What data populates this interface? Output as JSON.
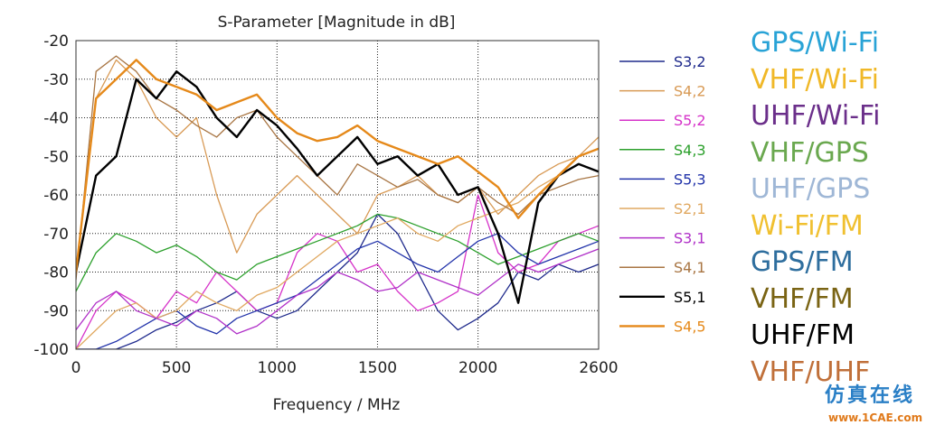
{
  "chart_data": {
    "type": "line",
    "title": "S-Parameter [Magnitude in dB]",
    "xlabel": "Frequency / MHz",
    "ylabel": "",
    "xlim": [
      0,
      2600
    ],
    "ylim": [
      -100,
      -20
    ],
    "x_ticks": [
      "0",
      "500",
      "1000",
      "1500",
      "2000",
      "2600"
    ],
    "y_ticks": [
      "-20",
      "-30",
      "-40",
      "-50",
      "-60",
      "-70",
      "-80",
      "-90",
      "-100"
    ],
    "grid": true,
    "legend_position": "right",
    "series": [
      {
        "name": "S3,2",
        "color": "#1f2a8c",
        "x": [
          0,
          100,
          200,
          300,
          400,
          500,
          600,
          700,
          800,
          900,
          1000,
          1100,
          1200,
          1300,
          1400,
          1500,
          1600,
          1700,
          1800,
          1900,
          2000,
          2100,
          2200,
          2300,
          2400,
          2500,
          2600
        ],
        "values": [
          -100,
          -100,
          -100,
          -98,
          -95,
          -93,
          -90,
          -88,
          -85,
          -90,
          -92,
          -90,
          -85,
          -80,
          -75,
          -65,
          -70,
          -80,
          -90,
          -95,
          -92,
          -88,
          -80,
          -82,
          -78,
          -80,
          -78
        ]
      },
      {
        "name": "S4,2",
        "color": "#d89a55",
        "x": [
          0,
          100,
          200,
          300,
          400,
          500,
          600,
          700,
          800,
          900,
          1000,
          1100,
          1200,
          1300,
          1400,
          1500,
          1600,
          1700,
          1800,
          1900,
          2000,
          2100,
          2200,
          2300,
          2400,
          2500,
          2600
        ],
        "values": [
          -80,
          -35,
          -25,
          -30,
          -40,
          -45,
          -40,
          -60,
          -75,
          -65,
          -60,
          -55,
          -60,
          -65,
          -70,
          -60,
          -58,
          -55,
          -60,
          -62,
          -58,
          -65,
          -60,
          -55,
          -52,
          -50,
          -45
        ]
      },
      {
        "name": "S5,2",
        "color": "#d633c9",
        "x": [
          0,
          100,
          200,
          300,
          400,
          500,
          600,
          700,
          800,
          900,
          1000,
          1100,
          1200,
          1300,
          1400,
          1500,
          1600,
          1700,
          1800,
          1900,
          2000,
          2100,
          2200,
          2300,
          2400,
          2500,
          2600
        ],
        "values": [
          -100,
          -90,
          -85,
          -88,
          -92,
          -85,
          -88,
          -80,
          -85,
          -90,
          -88,
          -75,
          -70,
          -72,
          -80,
          -78,
          -85,
          -90,
          -88,
          -85,
          -60,
          -75,
          -80,
          -78,
          -72,
          -70,
          -68
        ]
      },
      {
        "name": "S4,3",
        "color": "#2ca02c",
        "x": [
          0,
          100,
          200,
          300,
          400,
          500,
          600,
          700,
          800,
          900,
          1000,
          1100,
          1200,
          1300,
          1400,
          1500,
          1600,
          1700,
          1800,
          1900,
          2000,
          2100,
          2200,
          2300,
          2400,
          2500,
          2600
        ],
        "values": [
          -85,
          -75,
          -70,
          -72,
          -75,
          -73,
          -76,
          -80,
          -82,
          -78,
          -76,
          -74,
          -72,
          -70,
          -68,
          -65,
          -66,
          -68,
          -70,
          -72,
          -75,
          -78,
          -76,
          -74,
          -72,
          -70,
          -72
        ]
      },
      {
        "name": "S5,3",
        "color": "#2233aa",
        "x": [
          0,
          100,
          200,
          300,
          400,
          500,
          600,
          700,
          800,
          900,
          1000,
          1100,
          1200,
          1300,
          1400,
          1500,
          1600,
          1700,
          1800,
          1900,
          2000,
          2100,
          2200,
          2300,
          2400,
          2500,
          2600
        ],
        "values": [
          -100,
          -100,
          -98,
          -95,
          -92,
          -90,
          -94,
          -96,
          -92,
          -90,
          -88,
          -86,
          -82,
          -78,
          -74,
          -72,
          -75,
          -78,
          -80,
          -76,
          -72,
          -70,
          -75,
          -78,
          -76,
          -74,
          -72
        ]
      },
      {
        "name": "S2,1",
        "color": "#e0a860",
        "x": [
          0,
          100,
          200,
          300,
          400,
          500,
          600,
          700,
          800,
          900,
          1000,
          1100,
          1200,
          1300,
          1400,
          1500,
          1600,
          1700,
          1800,
          1900,
          2000,
          2100,
          2200,
          2300,
          2400,
          2500,
          2600
        ],
        "values": [
          -100,
          -95,
          -90,
          -88,
          -92,
          -90,
          -85,
          -88,
          -90,
          -86,
          -84,
          -80,
          -76,
          -72,
          -70,
          -68,
          -66,
          -70,
          -72,
          -68,
          -66,
          -64,
          -62,
          -58,
          -55,
          -50,
          -48
        ]
      },
      {
        "name": "S3,1",
        "color": "#b030c8",
        "x": [
          0,
          100,
          200,
          300,
          400,
          500,
          600,
          700,
          800,
          900,
          1000,
          1100,
          1200,
          1300,
          1400,
          1500,
          1600,
          1700,
          1800,
          1900,
          2000,
          2100,
          2200,
          2300,
          2400,
          2500,
          2600
        ],
        "values": [
          -95,
          -88,
          -85,
          -90,
          -92,
          -94,
          -90,
          -92,
          -96,
          -94,
          -90,
          -86,
          -84,
          -80,
          -82,
          -85,
          -84,
          -80,
          -82,
          -84,
          -86,
          -82,
          -78,
          -80,
          -78,
          -76,
          -74
        ]
      },
      {
        "name": "S4,1",
        "color": "#a87543",
        "x": [
          0,
          100,
          200,
          300,
          400,
          500,
          600,
          700,
          800,
          900,
          1000,
          1100,
          1200,
          1300,
          1400,
          1500,
          1600,
          1700,
          1800,
          1900,
          2000,
          2100,
          2200,
          2300,
          2400,
          2500,
          2600
        ],
        "values": [
          -82,
          -28,
          -24,
          -28,
          -35,
          -38,
          -42,
          -45,
          -40,
          -38,
          -45,
          -50,
          -55,
          -60,
          -52,
          -55,
          -58,
          -56,
          -60,
          -62,
          -58,
          -62,
          -65,
          -60,
          -58,
          -56,
          -55
        ]
      },
      {
        "name": "S5,1",
        "color": "#000000",
        "x": [
          0,
          100,
          200,
          300,
          400,
          500,
          600,
          700,
          800,
          900,
          1000,
          1100,
          1200,
          1300,
          1400,
          1500,
          1600,
          1700,
          1800,
          1900,
          2000,
          2100,
          2200,
          2300,
          2400,
          2500,
          2600
        ],
        "values": [
          -80,
          -55,
          -50,
          -30,
          -35,
          -28,
          -32,
          -40,
          -45,
          -38,
          -42,
          -48,
          -55,
          -50,
          -45,
          -52,
          -50,
          -55,
          -52,
          -60,
          -58,
          -70,
          -88,
          -62,
          -55,
          -52,
          -54
        ]
      },
      {
        "name": "S4,5",
        "color": "#e5891a",
        "x": [
          0,
          100,
          200,
          300,
          400,
          500,
          600,
          700,
          800,
          900,
          1000,
          1100,
          1200,
          1300,
          1400,
          1500,
          1600,
          1700,
          1800,
          1900,
          2000,
          2100,
          2200,
          2300,
          2400,
          2500,
          2600
        ],
        "values": [
          -80,
          -35,
          -30,
          -25,
          -30,
          -32,
          -34,
          -38,
          -36,
          -34,
          -40,
          -44,
          -46,
          -45,
          -42,
          -46,
          -48,
          -50,
          -52,
          -50,
          -54,
          -58,
          -66,
          -60,
          -55,
          -50,
          -48
        ]
      }
    ]
  },
  "right_labels": [
    {
      "text": "GPS/Wi-Fi",
      "color": "#29a3d6"
    },
    {
      "text": "VHF/Wi-Fi",
      "color": "#f0b828"
    },
    {
      "text": "UHF/Wi-Fi",
      "color": "#6b2f8a"
    },
    {
      "text": "VHF/GPS",
      "color": "#6aa84f"
    },
    {
      "text": "UHF/GPS",
      "color": "#9fb7d6"
    },
    {
      "text": "Wi-Fi/FM",
      "color": "#f0c030"
    },
    {
      "text": "GPS/FM",
      "color": "#2e6e9e"
    },
    {
      "text": "VHF/FM",
      "color": "#7a6414"
    },
    {
      "text": "UHF/FM",
      "color": "#000000"
    },
    {
      "text": "VHF/UHF",
      "color": "#c0703a"
    }
  ],
  "watermark": {
    "cn": "仿真在线",
    "en": "www.1CAE.com"
  }
}
